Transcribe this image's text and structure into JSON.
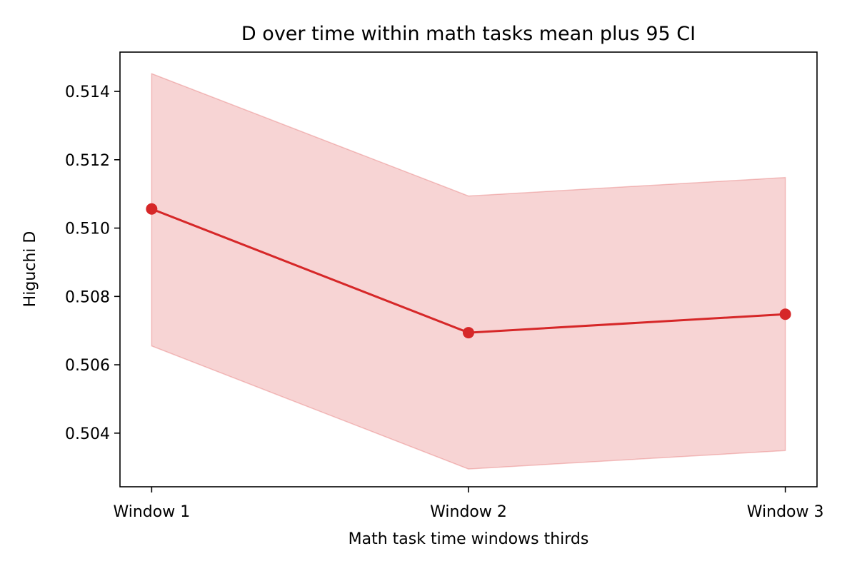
{
  "chart_data": {
    "type": "line",
    "title": "D over time within math tasks mean plus 95 CI",
    "xlabel": "Math task time windows thirds",
    "ylabel": "Higuchi D",
    "categories": [
      "Window 1",
      "Window 2",
      "Window 3"
    ],
    "series": [
      {
        "values": [
          0.51056,
          0.50694,
          0.50748
        ],
        "ci_lower": [
          0.50655,
          0.50295,
          0.50349
        ],
        "ci_upper": [
          0.51452,
          0.51094,
          0.51148
        ]
      }
    ],
    "ylim": [
      0.50243,
      0.51515
    ],
    "yticks": [
      0.504,
      0.506,
      0.508,
      0.51,
      0.512,
      0.514
    ],
    "ytick_labels": [
      "0.504",
      "0.506",
      "0.508",
      "0.510",
      "0.512",
      "0.514"
    ],
    "grid": false,
    "legend": "none",
    "colors": {
      "line": "#d62728",
      "band": "#d62728",
      "axes": "#000000"
    }
  }
}
